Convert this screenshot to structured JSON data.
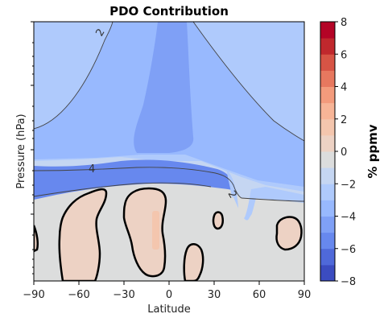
{
  "chart_data": {
    "type": "heatmap",
    "title": "PDO Contribution",
    "xlabel": "Latitude",
    "ylabel": "Pressure (hPa)",
    "xlim": [
      -90,
      90
    ],
    "x_ticks": [
      -90,
      -60,
      -30,
      0,
      30,
      60,
      90
    ],
    "x_tick_labels": [
      "−90",
      "−60",
      "−30",
      "0",
      "30",
      "60",
      "90"
    ],
    "y_scale": "log",
    "y_tick_labels_shown": false,
    "grid": false,
    "colorbar": {
      "label": "% ppmv",
      "range": [
        -8,
        8
      ],
      "ticks": [
        8,
        6,
        4,
        2,
        0,
        -2,
        -4,
        -6,
        -8
      ],
      "tick_labels": [
        "8",
        "6",
        "4",
        "2",
        "0",
        "−2",
        "−4",
        "−6",
        "−8"
      ],
      "colors": [
        "#3b4cc0",
        "#4f69d9",
        "#6788ee",
        "#7fa0f6",
        "#98b9fe",
        "#afcafc",
        "#c5d6f2",
        "#dcdddd",
        "#edd2c4",
        "#f4c6ae",
        "#f7b597",
        "#f39b7c",
        "#e7785f",
        "#d75445",
        "#c0282d",
        "#b40426"
      ],
      "position": "right"
    },
    "contour_labels": [
      "2",
      "4",
      "2"
    ],
    "description_levels": {
      "upper_band": -3,
      "upper_left_low": -2,
      "central_plume": -4,
      "strong_minimum_band": -5,
      "lower_region": 0,
      "positive_pockets": 1,
      "peak_pocket": 2
    }
  }
}
